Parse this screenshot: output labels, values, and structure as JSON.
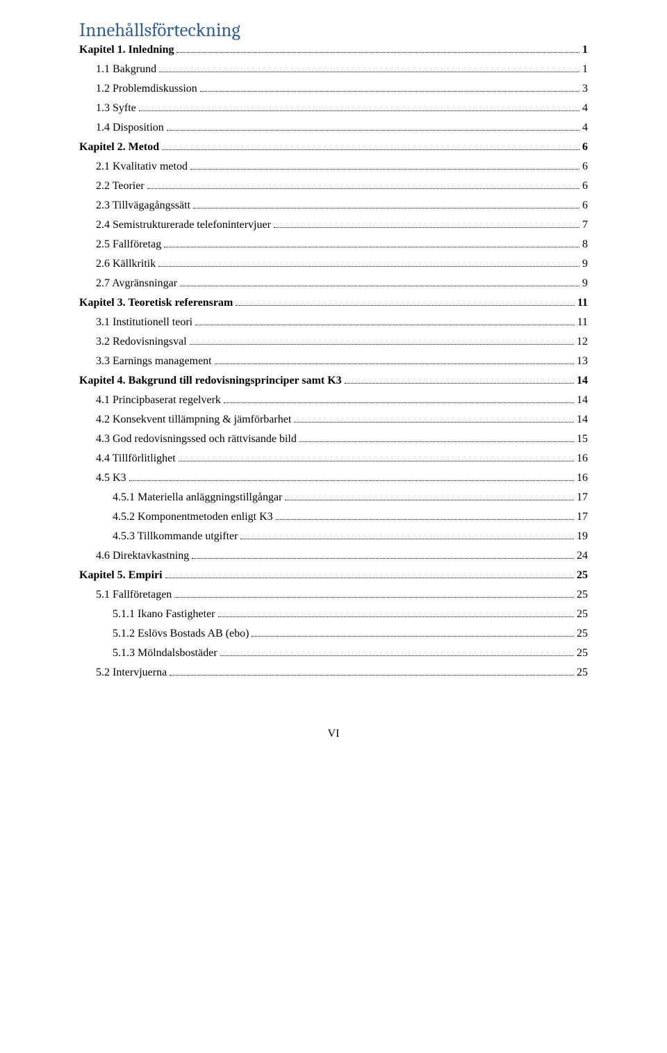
{
  "heading": "Innehållsförteckning",
  "footer": "VI",
  "entries": [
    {
      "label": "Kapitel 1. Inledning",
      "page": "1",
      "indent": 0,
      "bold": true
    },
    {
      "label": "1.1 Bakgrund",
      "page": "1",
      "indent": 1,
      "bold": false
    },
    {
      "label": "1.2 Problemdiskussion",
      "page": "3",
      "indent": 1,
      "bold": false
    },
    {
      "label": "1.3 Syfte",
      "page": "4",
      "indent": 1,
      "bold": false
    },
    {
      "label": "1.4 Disposition",
      "page": "4",
      "indent": 1,
      "bold": false
    },
    {
      "label": "Kapitel 2. Metod",
      "page": "6",
      "indent": 0,
      "bold": true
    },
    {
      "label": "2.1 Kvalitativ metod",
      "page": "6",
      "indent": 1,
      "bold": false
    },
    {
      "label": "2.2 Teorier",
      "page": "6",
      "indent": 1,
      "bold": false
    },
    {
      "label": "2.3 Tillvägagångssätt",
      "page": "6",
      "indent": 1,
      "bold": false
    },
    {
      "label": "2.4 Semistrukturerade telefonintervjuer",
      "page": "7",
      "indent": 1,
      "bold": false
    },
    {
      "label": "2.5 Fallföretag",
      "page": "8",
      "indent": 1,
      "bold": false
    },
    {
      "label": "2.6 Källkritik",
      "page": "9",
      "indent": 1,
      "bold": false
    },
    {
      "label": "2.7 Avgränsningar",
      "page": "9",
      "indent": 1,
      "bold": false
    },
    {
      "label": "Kapitel 3. Teoretisk referensram",
      "page": "11",
      "indent": 0,
      "bold": true
    },
    {
      "label": "3.1 Institutionell teori",
      "page": "11",
      "indent": 1,
      "bold": false
    },
    {
      "label": "3.2 Redovisningsval",
      "page": "12",
      "indent": 1,
      "bold": false
    },
    {
      "label": "3.3 Earnings management",
      "page": "13",
      "indent": 1,
      "bold": false
    },
    {
      "label": "Kapitel 4. Bakgrund till redovisningsprinciper samt K3",
      "page": "14",
      "indent": 0,
      "bold": true
    },
    {
      "label": "4.1 Principbaserat regelverk",
      "page": "14",
      "indent": 1,
      "bold": false
    },
    {
      "label": "4.2 Konsekvent tillämpning & jämförbarhet",
      "page": "14",
      "indent": 1,
      "bold": false
    },
    {
      "label": "4.3 God redovisningssed och rättvisande bild",
      "page": "15",
      "indent": 1,
      "bold": false
    },
    {
      "label": "4.4 Tillförlitlighet",
      "page": "16",
      "indent": 1,
      "bold": false
    },
    {
      "label": "4.5 K3",
      "page": "16",
      "indent": 1,
      "bold": false
    },
    {
      "label": "4.5.1 Materiella anläggningstillgångar",
      "page": "17",
      "indent": 2,
      "bold": false
    },
    {
      "label": "4.5.2 Komponentmetoden enligt K3",
      "page": "17",
      "indent": 2,
      "bold": false
    },
    {
      "label": "4.5.3 Tillkommande utgifter",
      "page": "19",
      "indent": 2,
      "bold": false
    },
    {
      "label": "4.6 Direktavkastning",
      "page": "24",
      "indent": 1,
      "bold": false
    },
    {
      "label": "Kapitel 5. Empiri",
      "page": "25",
      "indent": 0,
      "bold": true
    },
    {
      "label": "5.1 Fallföretagen",
      "page": "25",
      "indent": 1,
      "bold": false
    },
    {
      "label": "5.1.1 Ikano Fastigheter",
      "page": "25",
      "indent": 2,
      "bold": false
    },
    {
      "label": "5.1.2 Eslövs Bostads AB (ebo)",
      "page": "25",
      "indent": 2,
      "bold": false
    },
    {
      "label": "5.1.3 Mölndalsbostäder",
      "page": "25",
      "indent": 2,
      "bold": false
    },
    {
      "label": "5.2 Intervjuerna",
      "page": "25",
      "indent": 1,
      "bold": false
    }
  ]
}
